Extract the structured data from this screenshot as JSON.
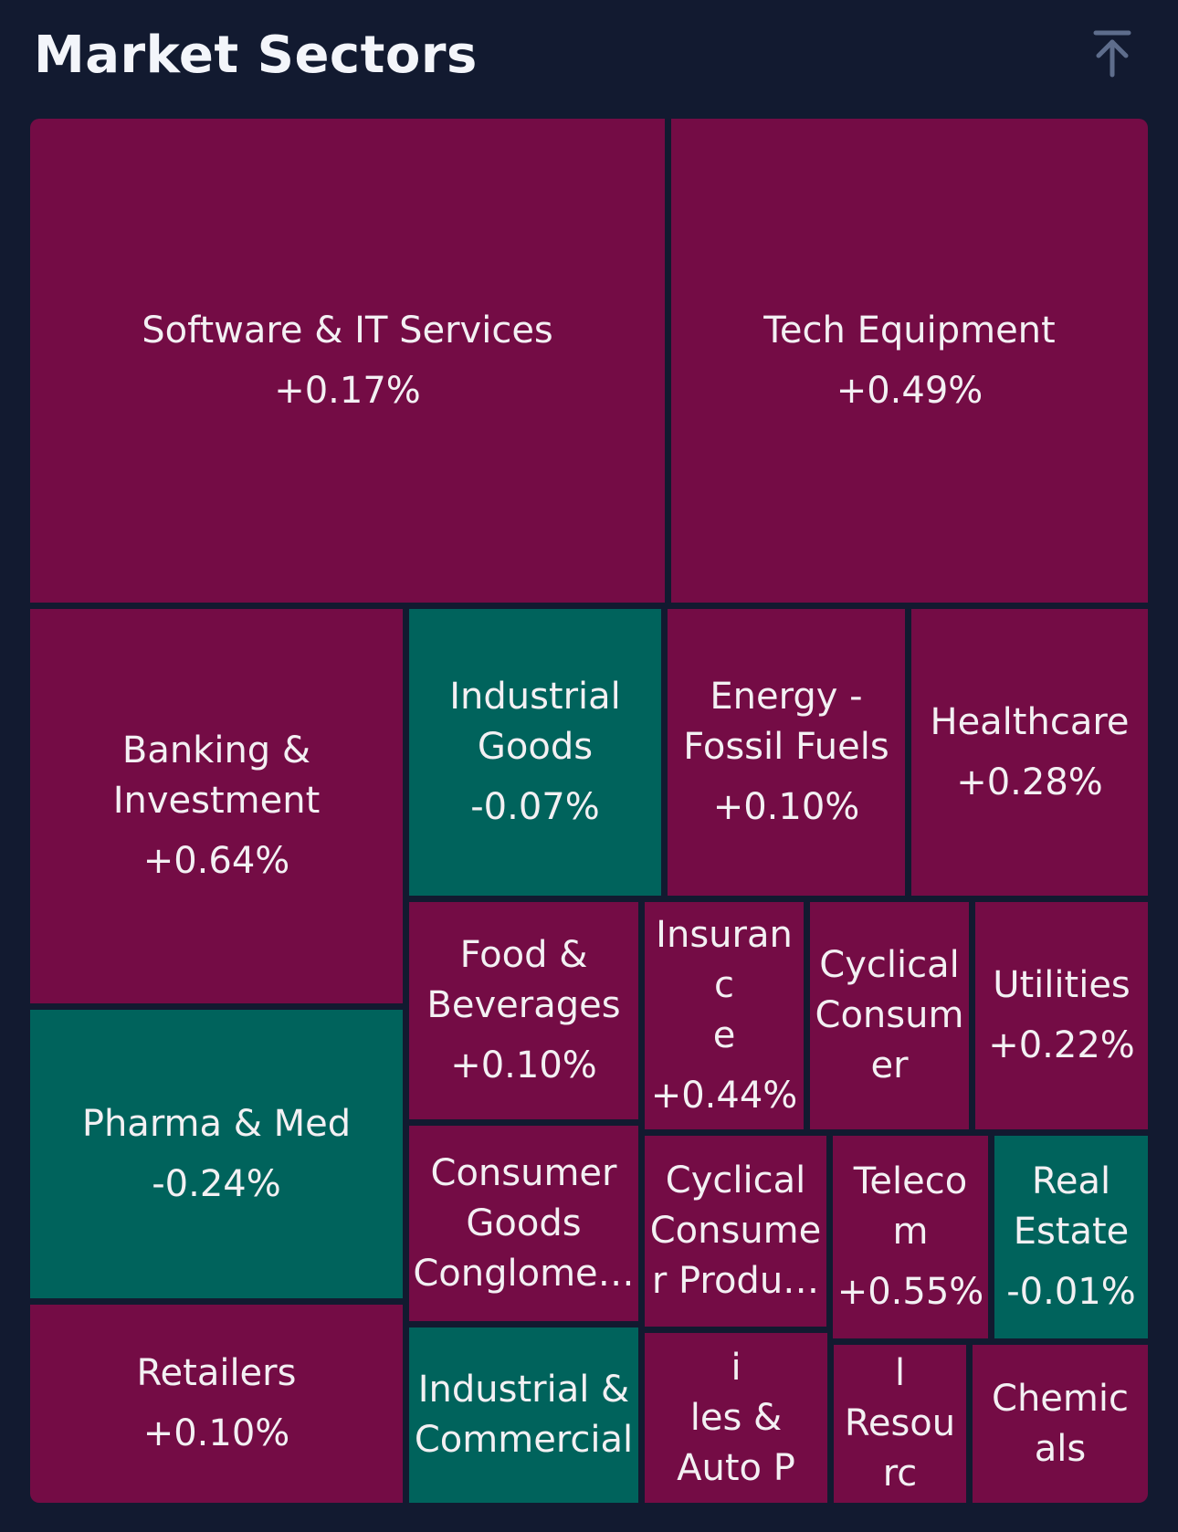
{
  "header": {
    "title": "Market Sectors",
    "scroll_top_icon": "arrow-up-to-line-icon"
  },
  "colors": {
    "background": "#121a30",
    "positive": "#740c45",
    "negative": "#00635c",
    "text": "#f3f0f3"
  },
  "chart_data": {
    "type": "treemap",
    "sectors": [
      {
        "name": "Software & IT Services",
        "label": "Software & IT Services",
        "change": "+0.17%"
      },
      {
        "name": "Tech Equipment",
        "label": "Tech Equipment",
        "change": "+0.49%"
      },
      {
        "name": "Banking & Investment",
        "label": "Banking &\nInvestment",
        "change": "+0.64%"
      },
      {
        "name": "Industrial Goods",
        "label": "Industrial\nGoods",
        "change": "-0.07%"
      },
      {
        "name": "Energy - Fossil Fuels",
        "label": "Energy -\nFossil Fuels",
        "change": "+0.10%"
      },
      {
        "name": "Healthcare",
        "label": "Healthcare",
        "change": "+0.28%"
      },
      {
        "name": "Pharma & Med",
        "label": "Pharma & Med",
        "change": "-0.24%"
      },
      {
        "name": "Food & Beverages",
        "label": "Food &\nBeverages",
        "change": "+0.10%"
      },
      {
        "name": "Insurance",
        "label": "Insuranc\ne",
        "change": "+0.44%"
      },
      {
        "name": "Cyclical Consumer",
        "label": "Cyclical\nConsum\ner",
        "change": ""
      },
      {
        "name": "Utilities",
        "label": "Utilities",
        "change": "+0.22%"
      },
      {
        "name": "Consumer Goods Conglomerates",
        "label": "Consumer\nGoods\nConglome…",
        "change": ""
      },
      {
        "name": "Cyclical Consumer Products",
        "label": "Cyclical\nConsume\nr Produ…",
        "change": ""
      },
      {
        "name": "Telecom",
        "label": "Telecom",
        "change": "+0.55%"
      },
      {
        "name": "Real Estate",
        "label": "Real\nEstate",
        "change": "-0.01%"
      },
      {
        "name": "Retailers",
        "label": "Retailers",
        "change": "+0.10%"
      },
      {
        "name": "Industrial & Commercial",
        "label": "Industrial &\nCommercial",
        "change": ""
      },
      {
        "name": "Automobiles & Auto Parts",
        "label": "Automobi\nles &\nAuto Pa…",
        "change": ""
      },
      {
        "name": "Mineral Resources",
        "label": "Mineral\nResourc\nes",
        "change": ""
      },
      {
        "name": "Chemicals",
        "label": "Chemic\nals",
        "change": ""
      }
    ]
  }
}
